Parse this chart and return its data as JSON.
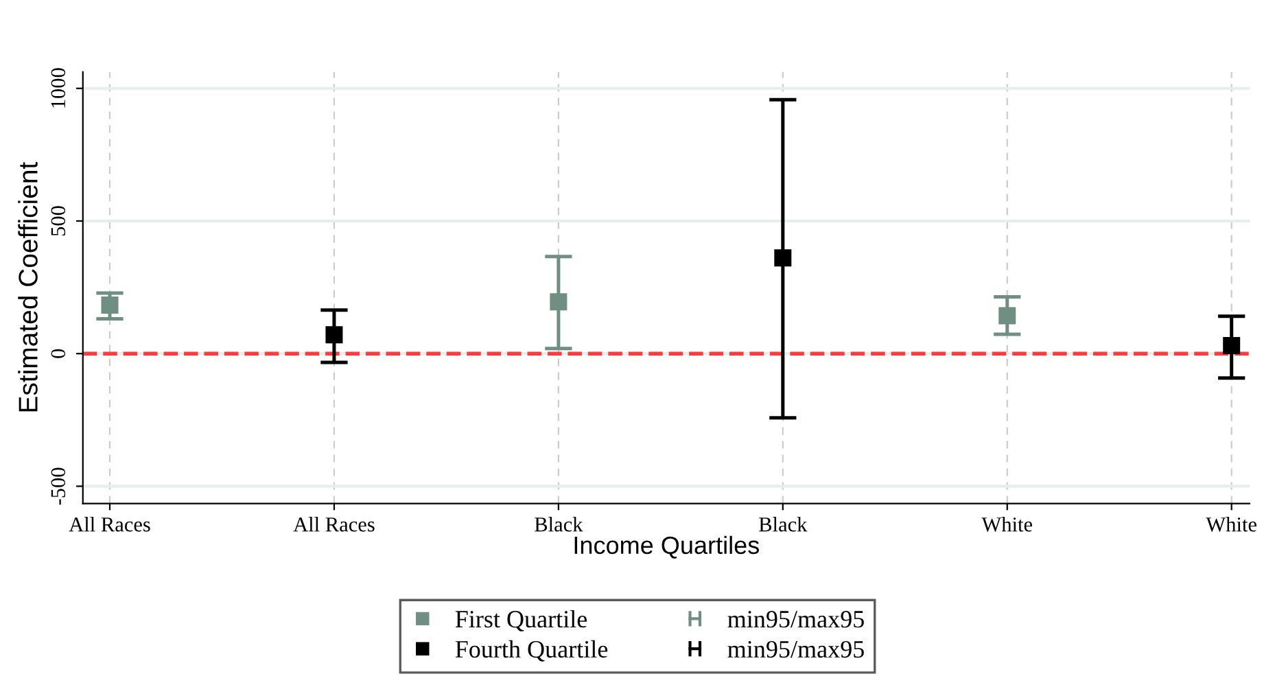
{
  "chart_data": {
    "type": "scatter",
    "xlabel": "Income Quartiles",
    "ylabel": "Estimated Coefficient",
    "categories": [
      "All Races",
      "All Races",
      "Black",
      "Black",
      "White",
      "White"
    ],
    "series": [
      {
        "name": "First Quartile",
        "color": "#6f8f83",
        "values": [
          183,
          null,
          195,
          null,
          143,
          null
        ],
        "errors": [
          [
            131,
            228
          ],
          null,
          [
            19,
            366
          ],
          null,
          [
            73,
            214
          ],
          null
        ]
      },
      {
        "name": "Fourth Quartile",
        "color": "#000000",
        "values": [
          null,
          71,
          null,
          361,
          null,
          30
        ],
        "errors": [
          null,
          [
            -33,
            164
          ],
          null,
          [
            -242,
            957
          ],
          null,
          [
            -92,
            141
          ]
        ]
      }
    ],
    "annotations": [
      "min95/max95",
      "min95/max95"
    ],
    "ylim": [
      -565,
      1062
    ],
    "yticks": [
      -500,
      0,
      500,
      1000
    ],
    "ref_lines": [
      {
        "axis": "y",
        "value": 0,
        "color": "#ff3b3b",
        "line_style": "dashed"
      }
    ],
    "grid": true,
    "legend": "bottom",
    "marker": "square"
  }
}
